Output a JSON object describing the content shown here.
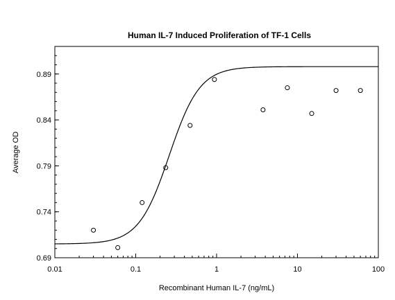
{
  "chart_data": {
    "type": "scatter",
    "title": "Human IL-7 Induced Proliferation of TF-1 Cells",
    "xlabel": "Recombinant Human IL-7 (ng/mL)",
    "ylabel": "Average OD",
    "x_scale": "log",
    "xlim": [
      0.01,
      100
    ],
    "ylim": [
      0.69,
      0.92
    ],
    "x_ticks": [
      {
        "value": 0.01,
        "label": "0.01"
      },
      {
        "value": 0.1,
        "label": "0.1"
      },
      {
        "value": 1,
        "label": "1"
      },
      {
        "value": 10,
        "label": "10"
      },
      {
        "value": 100,
        "label": "100"
      }
    ],
    "y_ticks": [
      {
        "value": 0.69,
        "label": "0.69"
      },
      {
        "value": 0.74,
        "label": "0.74"
      },
      {
        "value": 0.79,
        "label": "0.79"
      },
      {
        "value": 0.84,
        "label": "0.84"
      },
      {
        "value": 0.89,
        "label": "0.89"
      }
    ],
    "grid": false,
    "points": [
      {
        "x": 0.03,
        "y": 0.72
      },
      {
        "x": 0.06,
        "y": 0.701
      },
      {
        "x": 0.12,
        "y": 0.75
      },
      {
        "x": 0.235,
        "y": 0.788
      },
      {
        "x": 0.47,
        "y": 0.834
      },
      {
        "x": 0.94,
        "y": 0.884
      },
      {
        "x": 3.75,
        "y": 0.851
      },
      {
        "x": 7.5,
        "y": 0.875
      },
      {
        "x": 15,
        "y": 0.847
      },
      {
        "x": 30,
        "y": 0.872
      },
      {
        "x": 60,
        "y": 0.872
      }
    ],
    "fit_curve": {
      "model": "4PL",
      "bottom": 0.705,
      "top": 0.898,
      "ec50": 0.26,
      "hill": 2.3
    }
  }
}
